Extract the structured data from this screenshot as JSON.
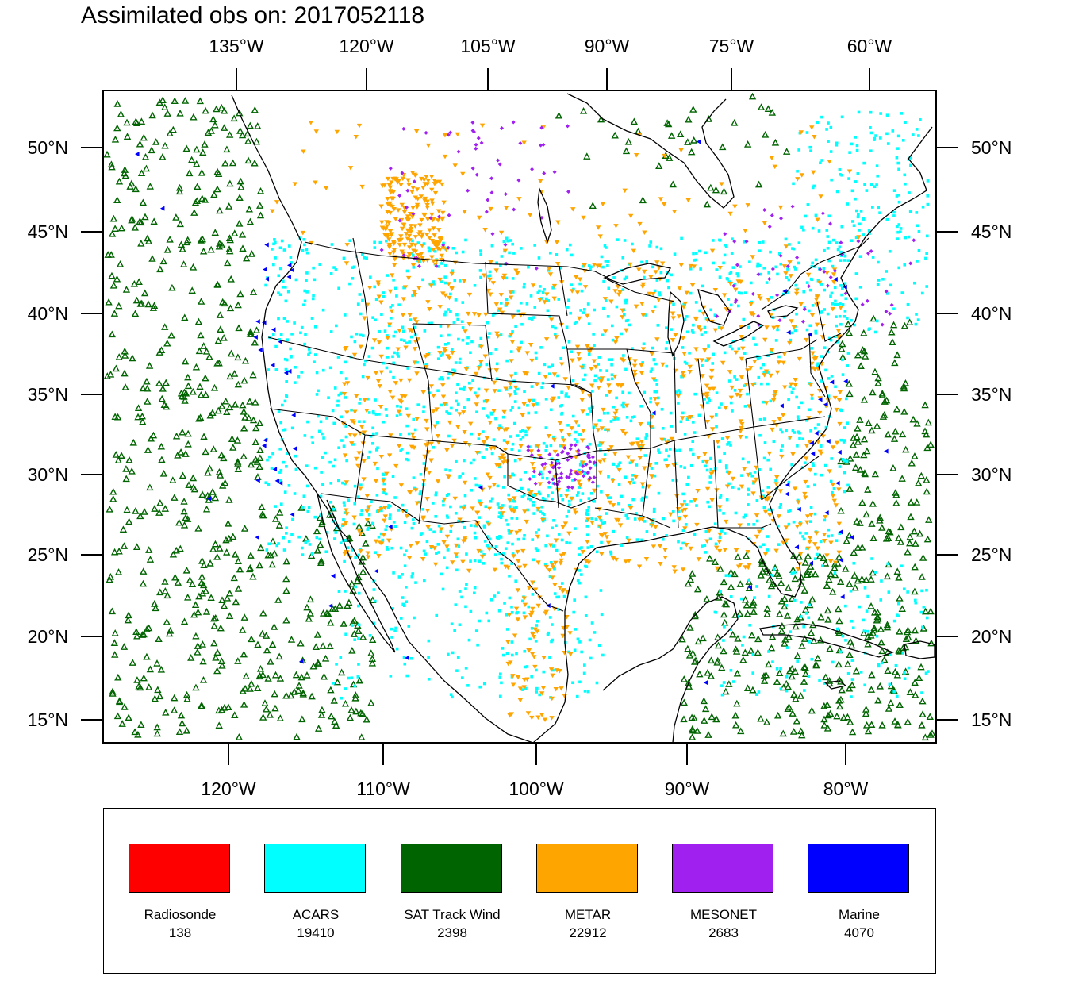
{
  "title": "Assimilated obs on: 2017052118",
  "map": {
    "top_lon_labels": [
      "135°W",
      "120°W",
      "105°W",
      "90°W",
      "75°W",
      "60°W"
    ],
    "bottom_lon_labels": [
      "120°W",
      "110°W",
      "100°W",
      "90°W",
      "80°W"
    ],
    "lat_labels": [
      "50°N",
      "45°N",
      "40°N",
      "35°N",
      "30°N",
      "25°N",
      "20°N",
      "15°N"
    ]
  },
  "legend": [
    {
      "label": "Radiosonde",
      "count": "138",
      "color": "#ff0000",
      "icon": "square-marker-icon"
    },
    {
      "label": "ACARS",
      "count": "19410",
      "color": "#00ffff",
      "icon": "square-marker-icon"
    },
    {
      "label": "SAT Track Wind",
      "count": "2398",
      "color": "#006400",
      "icon": "triangle-up-icon"
    },
    {
      "label": "METAR",
      "count": "22912",
      "color": "#ffa500",
      "icon": "triangle-down-icon"
    },
    {
      "label": "MESONET",
      "count": "2683",
      "color": "#a020f0",
      "icon": "diamond-marker-icon"
    },
    {
      "label": "Marine",
      "count": "4070",
      "color": "#0000ff",
      "icon": "triangle-left-icon"
    }
  ]
}
